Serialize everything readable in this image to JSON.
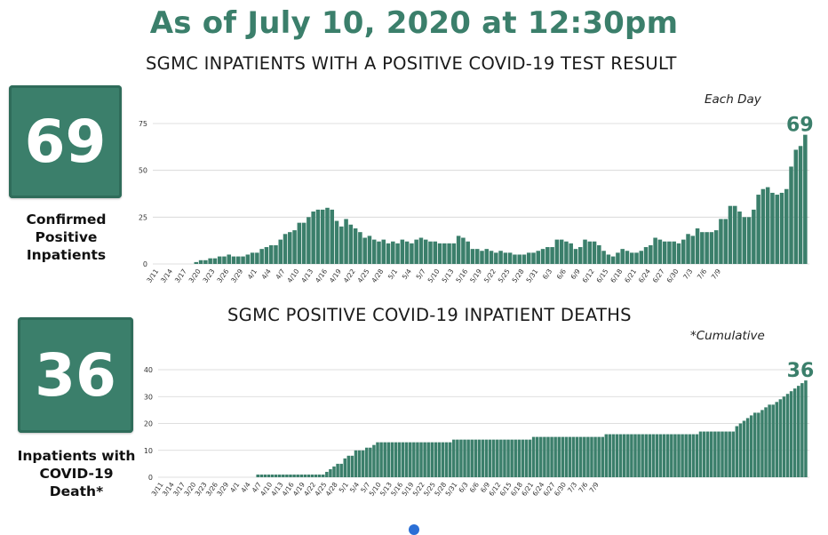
{
  "header": {
    "title": "As of July 10, 2020 at 12:30pm"
  },
  "stats": [
    {
      "value": "69",
      "label_lines": [
        "Confirmed",
        "Positive",
        "Inpatients"
      ]
    },
    {
      "value": "36",
      "label_lines": [
        "Inpatients with",
        "COVID-19",
        "Death*"
      ]
    }
  ],
  "colors": {
    "bar": "#3b7f6b",
    "accent": "#3b7f6b"
  },
  "chart_data": [
    {
      "type": "bar",
      "title": "SGMC INPATIENTS WITH A POSITIVE COVID-19 TEST RESULT",
      "note": "Each Day",
      "end_label": "69",
      "ylim": [
        0,
        75
      ],
      "yticks": [
        0,
        25,
        50,
        75
      ],
      "grid": true,
      "tick_labels": [
        "3/11",
        "3/14",
        "3/17",
        "3/20",
        "3/23",
        "3/26",
        "3/29",
        "4/1",
        "4/4",
        "4/7",
        "4/10",
        "4/13",
        "4/16",
        "4/19",
        "4/22",
        "4/25",
        "4/28",
        "5/1",
        "5/4",
        "5/7",
        "5/10",
        "5/13",
        "5/16",
        "5/19",
        "5/22",
        "5/25",
        "5/28",
        "5/31",
        "6/3",
        "6/6",
        "6/9",
        "6/12",
        "6/15",
        "6/18",
        "6/21",
        "6/24",
        "6/27",
        "6/30",
        "7/3",
        "7/6",
        "7/9"
      ],
      "values": [
        0,
        0,
        0,
        0,
        0,
        0,
        0,
        0,
        1,
        2,
        2,
        3,
        3,
        4,
        4,
        5,
        4,
        4,
        4,
        5,
        6,
        6,
        8,
        9,
        10,
        10,
        13,
        16,
        17,
        18,
        22,
        22,
        25,
        28,
        29,
        29,
        30,
        29,
        23,
        20,
        24,
        21,
        19,
        17,
        14,
        15,
        13,
        12,
        13,
        11,
        12,
        11,
        13,
        12,
        11,
        13,
        14,
        13,
        12,
        12,
        11,
        11,
        11,
        11,
        15,
        14,
        12,
        8,
        8,
        7,
        8,
        7,
        6,
        7,
        6,
        6,
        5,
        5,
        5,
        6,
        6,
        7,
        8,
        9,
        9,
        13,
        13,
        12,
        11,
        8,
        9,
        13,
        12,
        12,
        10,
        7,
        5,
        4,
        6,
        8,
        7,
        6,
        6,
        7,
        9,
        10,
        14,
        13,
        12,
        12,
        12,
        11,
        13,
        16,
        15,
        19,
        17,
        17,
        17,
        18,
        24,
        24,
        31,
        31,
        28,
        25,
        25,
        29,
        37,
        40,
        41,
        38,
        37,
        38,
        40,
        52,
        61,
        63,
        69
      ]
    },
    {
      "type": "bar",
      "title": "SGMC POSITIVE COVID-19 INPATIENT DEATHS",
      "note": "*Cumulative",
      "end_label": "36",
      "ylim": [
        0,
        40
      ],
      "yticks": [
        0,
        10,
        20,
        30,
        40
      ],
      "grid": true,
      "tick_labels": [
        "3/11",
        "3/14",
        "3/17",
        "3/20",
        "3/23",
        "3/26",
        "3/29",
        "4/1",
        "4/4",
        "4/7",
        "4/10",
        "4/13",
        "4/16",
        "4/19",
        "4/22",
        "4/25",
        "4/28",
        "5/1",
        "5/4",
        "5/7",
        "5/10",
        "5/13",
        "5/16",
        "5/19",
        "5/22",
        "5/25",
        "5/28",
        "5/31",
        "6/3",
        "6/6",
        "6/9",
        "6/12",
        "6/15",
        "6/18",
        "6/21",
        "6/24",
        "6/27",
        "6/30",
        "7/3",
        "7/6",
        "7/9"
      ],
      "values": [
        0,
        0,
        0,
        0,
        0,
        0,
        0,
        0,
        0,
        0,
        0,
        0,
        0,
        0,
        0,
        0,
        0,
        0,
        0,
        0,
        0,
        0,
        0,
        0,
        0,
        0,
        1,
        1,
        1,
        1,
        1,
        1,
        1,
        1,
        1,
        1,
        1,
        1,
        1,
        1,
        1,
        1,
        1,
        1,
        1,
        2,
        3,
        4,
        5,
        5,
        7,
        8,
        8,
        10,
        10,
        10,
        11,
        11,
        12,
        13,
        13,
        13,
        13,
        13,
        13,
        13,
        13,
        13,
        13,
        13,
        13,
        13,
        13,
        13,
        13,
        13,
        13,
        13,
        13,
        13,
        14,
        14,
        14,
        14,
        14,
        14,
        14,
        14,
        14,
        14,
        14,
        14,
        14,
        14,
        14,
        14,
        14,
        14,
        14,
        14,
        14,
        14,
        15,
        15,
        15,
        15,
        15,
        15,
        15,
        15,
        15,
        15,
        15,
        15,
        15,
        15,
        15,
        15,
        15,
        15,
        15,
        15,
        16,
        16,
        16,
        16,
        16,
        16,
        16,
        16,
        16,
        16,
        16,
        16,
        16,
        16,
        16,
        16,
        16,
        16,
        16,
        16,
        16,
        16,
        16,
        16,
        16,
        16,
        17,
        17,
        17,
        17,
        17,
        17,
        17,
        17,
        17,
        17,
        19,
        20,
        21,
        22,
        23,
        24,
        24,
        25,
        26,
        27,
        27,
        28,
        29,
        30,
        31,
        32,
        33,
        34,
        35,
        36
      ]
    }
  ]
}
